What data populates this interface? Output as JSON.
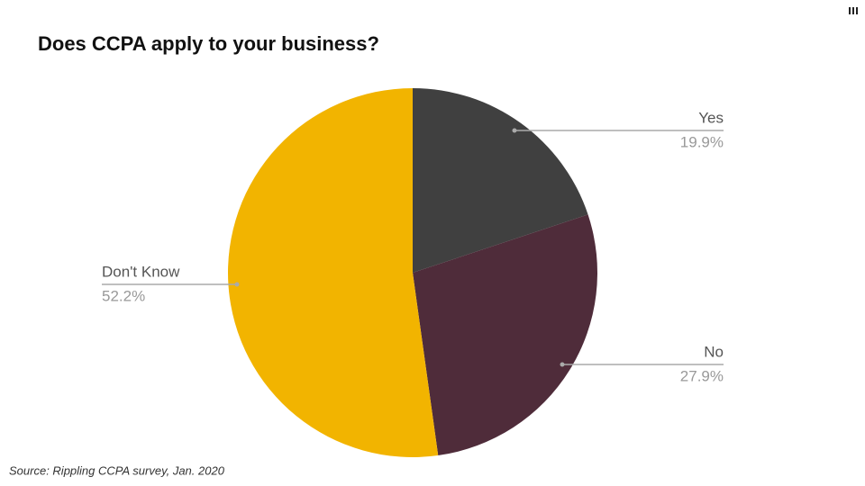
{
  "chart_data": {
    "type": "pie",
    "title": "Does CCPA apply to your business?",
    "categories": [
      "Yes",
      "No",
      "Don't Know"
    ],
    "values": [
      19.9,
      27.9,
      52.2
    ],
    "value_labels": [
      "19.9%",
      "27.9%",
      "52.2%"
    ],
    "colors": [
      "#404040",
      "#4f2c3a",
      "#f2b400"
    ],
    "source": "Source: Rippling CCPA survey, Jan. 2020"
  }
}
